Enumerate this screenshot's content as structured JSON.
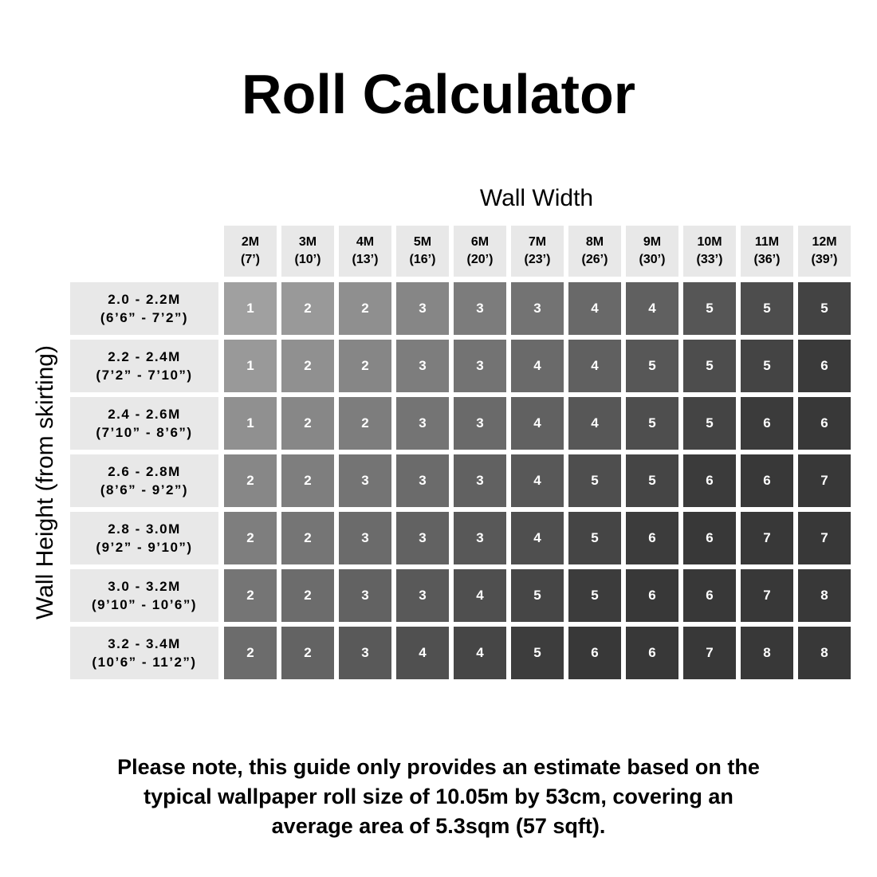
{
  "chart_data": {
    "type": "table",
    "title": "Roll Calculator",
    "xlabel": "Wall Width",
    "ylabel": "Wall Height (from skirting)",
    "columns": [
      {
        "m": "2M",
        "ft": "(7’)"
      },
      {
        "m": "3M",
        "ft": "(10’)"
      },
      {
        "m": "4M",
        "ft": "(13’)"
      },
      {
        "m": "5M",
        "ft": "(16’)"
      },
      {
        "m": "6M",
        "ft": "(20’)"
      },
      {
        "m": "7M",
        "ft": "(23’)"
      },
      {
        "m": "8M",
        "ft": "(26’)"
      },
      {
        "m": "9M",
        "ft": "(30’)"
      },
      {
        "m": "10M",
        "ft": "(33’)"
      },
      {
        "m": "11M",
        "ft": "(36’)"
      },
      {
        "m": "12M",
        "ft": "(39’)"
      }
    ],
    "rows": [
      {
        "m": "2.0 - 2.2M",
        "ft": "(6’6” - 7’2”)",
        "values": [
          1,
          2,
          2,
          3,
          3,
          3,
          4,
          4,
          5,
          5,
          5
        ]
      },
      {
        "m": "2.2 - 2.4M",
        "ft": "(7’2” - 7’10”)",
        "values": [
          1,
          2,
          2,
          3,
          3,
          4,
          4,
          5,
          5,
          5,
          6
        ]
      },
      {
        "m": "2.4 - 2.6M",
        "ft": "(7’10” - 8’6”)",
        "values": [
          1,
          2,
          2,
          3,
          3,
          4,
          4,
          5,
          5,
          6,
          6
        ]
      },
      {
        "m": "2.6 - 2.8M",
        "ft": "(8’6” - 9’2”)",
        "values": [
          2,
          2,
          3,
          3,
          3,
          4,
          5,
          5,
          6,
          6,
          7
        ]
      },
      {
        "m": "2.8 - 3.0M",
        "ft": "(9’2” - 9’10”)",
        "values": [
          2,
          2,
          3,
          3,
          3,
          4,
          5,
          6,
          6,
          7,
          7
        ]
      },
      {
        "m": "3.0 - 3.2M",
        "ft": "(9’10” - 10’6”)",
        "values": [
          2,
          2,
          3,
          3,
          4,
          5,
          5,
          6,
          6,
          7,
          8
        ]
      },
      {
        "m": "3.2 - 3.4M",
        "ft": "(10’6” - 11’2”)",
        "values": [
          2,
          2,
          3,
          4,
          4,
          5,
          6,
          6,
          7,
          8,
          8
        ]
      }
    ],
    "colors": {
      "header_bg": "#e8e8e8",
      "cell_light": "#a0a0a0",
      "cell_dark": "#3a3a3a",
      "cell_text": "#ffffff"
    }
  },
  "note": [
    "Please note, this guide only provides an estimate based on the",
    "typical wallpaper roll size of 10.05m by 53cm, covering an",
    "average area of 5.3sqm (57 sqft)."
  ]
}
